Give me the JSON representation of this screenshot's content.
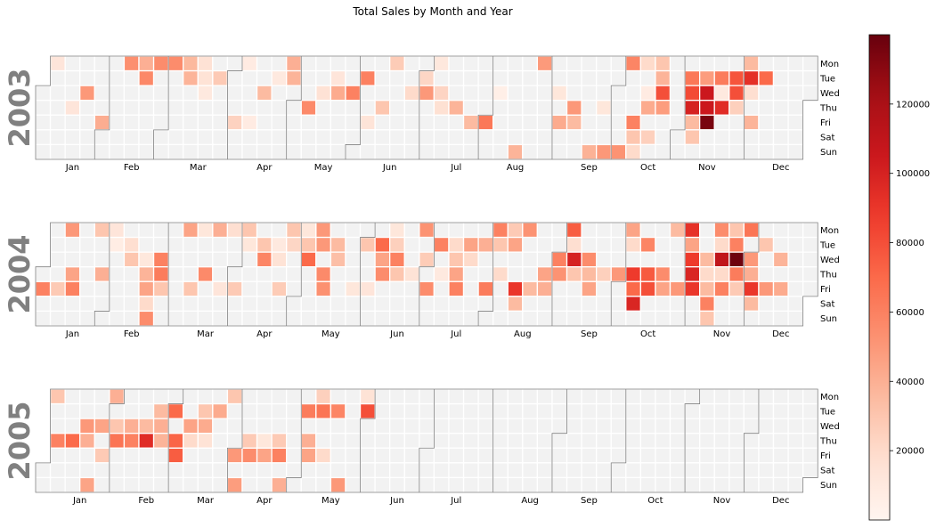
{
  "chart_data": {
    "type": "heatmap",
    "title": "Total Sales by Month and Year",
    "weekdays": [
      "Mon",
      "Tue",
      "Wed",
      "Thu",
      "Fri",
      "Sat",
      "Sun"
    ],
    "month_labels": [
      "Jan",
      "Feb",
      "Mar",
      "Apr",
      "May",
      "Jun",
      "Jul",
      "Aug",
      "Sep",
      "Oct",
      "Nov",
      "Dec"
    ],
    "colorbar": {
      "min": 0,
      "max": 140000,
      "ticks": [
        20000,
        40000,
        60000,
        80000,
        100000,
        120000
      ],
      "colormap": "Reds"
    },
    "colors": {
      "empty_cell": "#f2f2f2",
      "year_label": "#808080",
      "month_border": "#808080"
    },
    "years": [
      {
        "year": "2003",
        "values": [
          [
            "2003-01-06",
            13000
          ],
          [
            "2003-01-16",
            13000
          ],
          [
            "2003-01-22",
            50000
          ],
          [
            "2003-01-31",
            41000
          ],
          [
            "2003-02-10",
            54000
          ],
          [
            "2003-02-18",
            57000
          ],
          [
            "2003-02-17",
            40000
          ],
          [
            "2003-02-24",
            55000
          ],
          [
            "2003-03-03",
            55000
          ],
          [
            "2003-03-10",
            36000
          ],
          [
            "2003-03-11",
            38000
          ],
          [
            "2003-03-17",
            16000
          ],
          [
            "2003-03-18",
            15000
          ],
          [
            "2003-03-19",
            10000
          ],
          [
            "2003-03-25",
            28000
          ],
          [
            "2003-04-04",
            24000
          ],
          [
            "2003-04-07",
            8000
          ],
          [
            "2003-04-11",
            8000
          ],
          [
            "2003-04-16",
            35000
          ],
          [
            "2003-04-22",
            10000
          ],
          [
            "2003-04-28",
            40000
          ],
          [
            "2003-04-29",
            38000
          ],
          [
            "2003-05-08",
            56000
          ],
          [
            "2003-05-14",
            16000
          ],
          [
            "2003-05-20",
            13000
          ],
          [
            "2003-05-21",
            42000
          ],
          [
            "2003-05-28",
            60000
          ],
          [
            "2003-06-03",
            60000
          ],
          [
            "2003-06-06",
            14000
          ],
          [
            "2003-06-12",
            30000
          ],
          [
            "2003-06-16",
            27000
          ],
          [
            "2003-06-25",
            20000
          ],
          [
            "2003-07-01",
            22000
          ],
          [
            "2003-07-02",
            50000
          ],
          [
            "2003-07-07",
            11000
          ],
          [
            "2003-07-09",
            23000
          ],
          [
            "2003-07-10",
            17000
          ],
          [
            "2003-07-17",
            38000
          ],
          [
            "2003-07-25",
            35000
          ],
          [
            "2003-08-01",
            64000
          ],
          [
            "2003-08-06",
            5000
          ],
          [
            "2003-08-17",
            38000
          ],
          [
            "2003-08-25",
            49000
          ],
          [
            "2003-09-03",
            12000
          ],
          [
            "2003-09-05",
            42000
          ],
          [
            "2003-09-11",
            50000
          ],
          [
            "2003-09-12",
            35000
          ],
          [
            "2003-09-21",
            39000
          ],
          [
            "2003-09-25",
            12000
          ],
          [
            "2003-09-28",
            50000
          ],
          [
            "2003-10-05",
            52000
          ],
          [
            "2003-10-06",
            58000
          ],
          [
            "2003-10-10",
            60000
          ],
          [
            "2003-10-11",
            30000
          ],
          [
            "2003-10-12",
            20000
          ],
          [
            "2003-10-13",
            20000
          ],
          [
            "2003-10-15",
            8000
          ],
          [
            "2003-10-16",
            42000
          ],
          [
            "2003-10-18",
            25000
          ],
          [
            "2003-10-20",
            30000
          ],
          [
            "2003-10-21",
            38000
          ],
          [
            "2003-10-22",
            80000
          ],
          [
            "2003-10-23",
            48000
          ],
          [
            "2003-11-04",
            64000
          ],
          [
            "2003-11-05",
            82000
          ],
          [
            "2003-11-06",
            100000
          ],
          [
            "2003-11-07",
            35000
          ],
          [
            "2003-11-08",
            30000
          ],
          [
            "2003-11-11",
            48000
          ],
          [
            "2003-11-12",
            105000
          ],
          [
            "2003-11-13",
            105000
          ],
          [
            "2003-11-14",
            135000
          ],
          [
            "2003-11-18",
            62000
          ],
          [
            "2003-11-19",
            10000
          ],
          [
            "2003-11-20",
            95000
          ],
          [
            "2003-11-25",
            78000
          ],
          [
            "2003-11-26",
            80000
          ],
          [
            "2003-11-27",
            25000
          ],
          [
            "2003-12-01",
            35000
          ],
          [
            "2003-12-02",
            93000
          ],
          [
            "2003-12-03",
            18000
          ],
          [
            "2003-12-05",
            38000
          ],
          [
            "2003-12-09",
            70000
          ]
        ]
      },
      {
        "year": "2004",
        "values": [
          [
            "2004-01-02",
            60000
          ],
          [
            "2004-01-09",
            28000
          ],
          [
            "2004-01-12",
            50000
          ],
          [
            "2004-01-15",
            45000
          ],
          [
            "2004-01-16",
            60000
          ],
          [
            "2004-01-26",
            30000
          ],
          [
            "2004-01-29",
            40000
          ],
          [
            "2004-02-02",
            13000
          ],
          [
            "2004-02-03",
            7000
          ],
          [
            "2004-02-10",
            18000
          ],
          [
            "2004-02-11",
            30000
          ],
          [
            "2004-02-18",
            11000
          ],
          [
            "2004-02-19",
            38000
          ],
          [
            "2004-02-20",
            45000
          ],
          [
            "2004-02-21",
            20000
          ],
          [
            "2004-02-22",
            55000
          ],
          [
            "2004-02-25",
            60000
          ],
          [
            "2004-02-26",
            62000
          ],
          [
            "2004-02-27",
            30000
          ],
          [
            "2004-03-08",
            45000
          ],
          [
            "2004-03-12",
            30000
          ],
          [
            "2004-03-15",
            12000
          ],
          [
            "2004-03-18",
            56000
          ],
          [
            "2004-03-22",
            40000
          ],
          [
            "2004-03-26",
            13000
          ],
          [
            "2004-03-29",
            18000
          ],
          [
            "2004-04-02",
            28000
          ],
          [
            "2004-04-05",
            30000
          ],
          [
            "2004-04-06",
            12000
          ],
          [
            "2004-04-13",
            30000
          ],
          [
            "2004-04-14",
            58000
          ],
          [
            "2004-04-20",
            10000
          ],
          [
            "2004-04-21",
            15000
          ],
          [
            "2004-04-23",
            27000
          ],
          [
            "2004-04-26",
            30000
          ],
          [
            "2004-04-27",
            22000
          ],
          [
            "2004-05-03",
            12000
          ],
          [
            "2004-05-04",
            30000
          ],
          [
            "2004-05-05",
            70000
          ],
          [
            "2004-05-10",
            50000
          ],
          [
            "2004-05-11",
            50000
          ],
          [
            "2004-05-13",
            56000
          ],
          [
            "2004-05-14",
            53000
          ],
          [
            "2004-05-18",
            35000
          ],
          [
            "2004-05-19",
            33000
          ],
          [
            "2004-05-28",
            12000
          ],
          [
            "2004-06-01",
            30000
          ],
          [
            "2004-06-04",
            13000
          ],
          [
            "2004-06-08",
            70000
          ],
          [
            "2004-06-09",
            45000
          ],
          [
            "2004-06-10",
            55000
          ],
          [
            "2004-06-14",
            12000
          ],
          [
            "2004-06-15",
            25000
          ],
          [
            "2004-06-16",
            60000
          ],
          [
            "2004-06-17",
            30000
          ],
          [
            "2004-06-24",
            15000
          ],
          [
            "2004-06-28",
            52000
          ],
          [
            "2004-06-30",
            27000
          ],
          [
            "2004-07-02",
            55000
          ],
          [
            "2004-07-06",
            60000
          ],
          [
            "2004-07-08",
            10000
          ],
          [
            "2004-07-13",
            20000
          ],
          [
            "2004-07-14",
            30000
          ],
          [
            "2004-07-15",
            45000
          ],
          [
            "2004-07-16",
            60000
          ],
          [
            "2004-07-20",
            45000
          ],
          [
            "2004-07-21",
            20000
          ],
          [
            "2004-07-27",
            40000
          ],
          [
            "2004-07-30",
            62000
          ],
          [
            "2004-08-02",
            60000
          ],
          [
            "2004-08-03",
            30000
          ],
          [
            "2004-08-05",
            20000
          ],
          [
            "2004-08-09",
            28000
          ],
          [
            "2004-08-10",
            45000
          ],
          [
            "2004-08-13",
            90000
          ],
          [
            "2004-08-14",
            35000
          ],
          [
            "2004-08-16",
            52000
          ],
          [
            "2004-08-20",
            35000
          ],
          [
            "2004-08-26",
            45000
          ],
          [
            "2004-08-27",
            40000
          ],
          [
            "2004-09-01",
            60000
          ],
          [
            "2004-09-02",
            52000
          ],
          [
            "2004-09-06",
            75000
          ],
          [
            "2004-09-07",
            18000
          ],
          [
            "2004-09-08",
            100000
          ],
          [
            "2004-09-09",
            30000
          ],
          [
            "2004-09-15",
            55000
          ],
          [
            "2004-09-16",
            35000
          ],
          [
            "2004-09-17",
            45000
          ],
          [
            "2004-09-23",
            25000
          ],
          [
            "2004-09-30",
            50000
          ],
          [
            "2004-10-04",
            45000
          ],
          [
            "2004-10-05",
            20000
          ],
          [
            "2004-10-07",
            88000
          ],
          [
            "2004-10-08",
            70000
          ],
          [
            "2004-10-09",
            98000
          ],
          [
            "2004-10-12",
            58000
          ],
          [
            "2004-10-14",
            76000
          ],
          [
            "2004-10-15",
            80000
          ],
          [
            "2004-10-21",
            55000
          ],
          [
            "2004-10-22",
            45000
          ],
          [
            "2004-10-25",
            35000
          ],
          [
            "2004-10-29",
            50000
          ],
          [
            "2004-11-01",
            92000
          ],
          [
            "2004-11-02",
            45000
          ],
          [
            "2004-11-03",
            88000
          ],
          [
            "2004-11-04",
            98000
          ],
          [
            "2004-11-05",
            90000
          ],
          [
            "2004-11-10",
            35000
          ],
          [
            "2004-11-11",
            20000
          ],
          [
            "2004-11-12",
            35000
          ],
          [
            "2004-11-13",
            60000
          ],
          [
            "2004-11-14",
            30000
          ],
          [
            "2004-11-15",
            55000
          ],
          [
            "2004-11-16",
            20000
          ],
          [
            "2004-11-17",
            110000
          ],
          [
            "2004-11-18",
            20000
          ],
          [
            "2004-11-19",
            60000
          ],
          [
            "2004-11-22",
            30000
          ],
          [
            "2004-11-23",
            60000
          ],
          [
            "2004-11-24",
            138000
          ],
          [
            "2004-11-25",
            62000
          ],
          [
            "2004-11-26",
            28000
          ],
          [
            "2004-11-29",
            65000
          ],
          [
            "2004-12-01",
            50000
          ],
          [
            "2004-12-02",
            40000
          ],
          [
            "2004-12-03",
            90000
          ],
          [
            "2004-12-04",
            35000
          ],
          [
            "2004-12-07",
            30000
          ],
          [
            "2004-12-10",
            50000
          ],
          [
            "2004-12-15",
            38000
          ],
          [
            "2004-12-17",
            42000
          ]
        ]
      },
      {
        "year": "2005",
        "values": [
          [
            "2005-01-03",
            30000
          ],
          [
            "2005-01-06",
            60000
          ],
          [
            "2005-01-13",
            70000
          ],
          [
            "2005-01-19",
            50000
          ],
          [
            "2005-01-20",
            40000
          ],
          [
            "2005-01-23",
            45000
          ],
          [
            "2005-01-26",
            45000
          ],
          [
            "2005-01-28",
            28000
          ],
          [
            "2005-01-31",
            40000
          ],
          [
            "2005-02-02",
            30000
          ],
          [
            "2005-02-03",
            65000
          ],
          [
            "2005-02-09",
            40000
          ],
          [
            "2005-02-10",
            60000
          ],
          [
            "2005-02-16",
            35000
          ],
          [
            "2005-02-17",
            95000
          ],
          [
            "2005-02-22",
            35000
          ],
          [
            "2005-02-23",
            40000
          ],
          [
            "2005-02-24",
            38000
          ],
          [
            "2005-03-01",
            70000
          ],
          [
            "2005-03-03",
            72000
          ],
          [
            "2005-03-04",
            75000
          ],
          [
            "2005-03-09",
            45000
          ],
          [
            "2005-03-10",
            20000
          ],
          [
            "2005-03-15",
            30000
          ],
          [
            "2005-03-16",
            42000
          ],
          [
            "2005-03-17",
            15000
          ],
          [
            "2005-03-22",
            42000
          ],
          [
            "2005-03-28",
            30000
          ],
          [
            "2005-04-01",
            50000
          ],
          [
            "2005-04-03",
            48000
          ],
          [
            "2005-04-07",
            28000
          ],
          [
            "2005-04-08",
            55000
          ],
          [
            "2005-04-14",
            12000
          ],
          [
            "2005-04-15",
            45000
          ],
          [
            "2005-04-21",
            28000
          ],
          [
            "2005-04-22",
            60000
          ],
          [
            "2005-04-24",
            40000
          ],
          [
            "2005-05-03",
            62000
          ],
          [
            "2005-05-05",
            40000
          ],
          [
            "2005-05-06",
            45000
          ],
          [
            "2005-05-09",
            25000
          ],
          [
            "2005-05-10",
            65000
          ],
          [
            "2005-05-13",
            20000
          ],
          [
            "2005-05-17",
            58000
          ],
          [
            "2005-05-22",
            50000
          ],
          [
            "2005-05-31",
            80000
          ],
          [
            "2005-05-30",
            15000
          ]
        ]
      }
    ]
  }
}
